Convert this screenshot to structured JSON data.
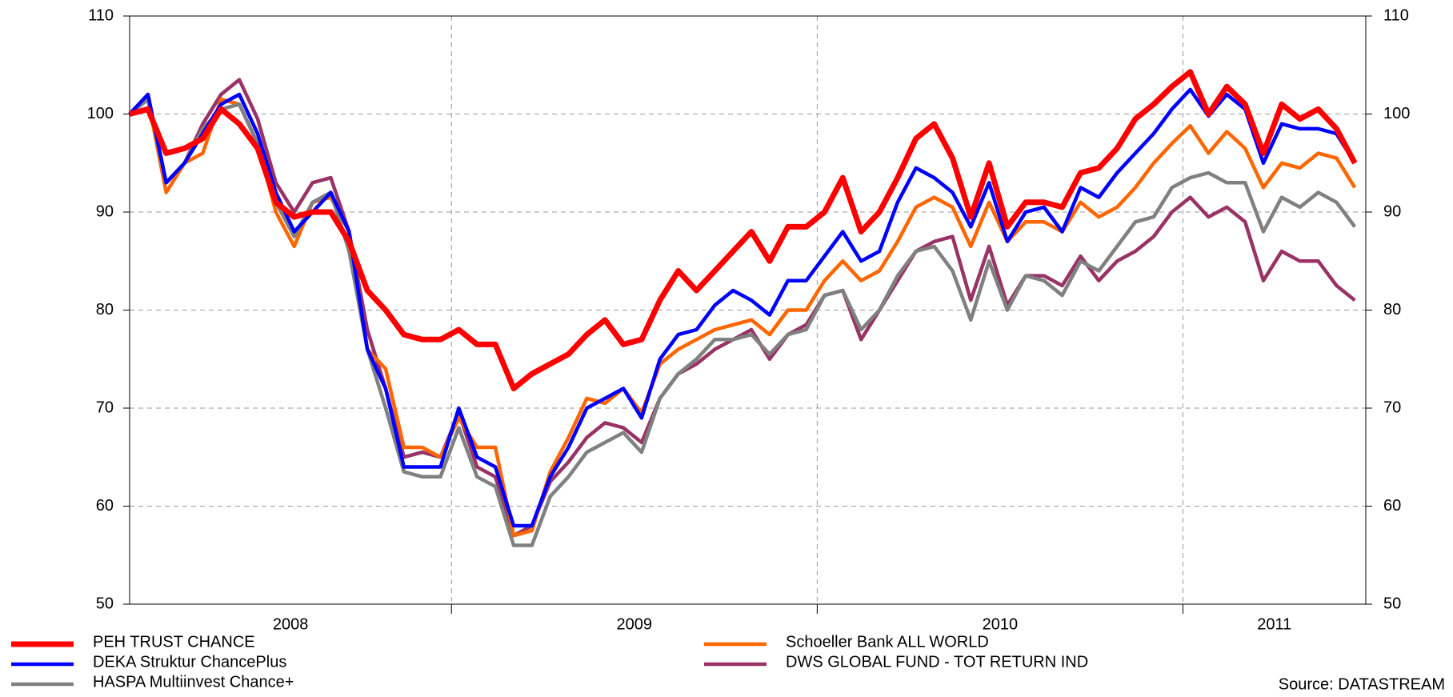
{
  "chart_data": {
    "type": "line",
    "source": "Source: DATASTREAM",
    "x": [
      2008.12,
      2008.17,
      2008.22,
      2008.27,
      2008.32,
      2008.37,
      2008.42,
      2008.47,
      2008.52,
      2008.57,
      2008.62,
      2008.67,
      2008.72,
      2008.77,
      2008.82,
      2008.87,
      2008.92,
      2008.97,
      2009.02,
      2009.07,
      2009.12,
      2009.17,
      2009.22,
      2009.27,
      2009.32,
      2009.37,
      2009.42,
      2009.47,
      2009.52,
      2009.57,
      2009.62,
      2009.67,
      2009.72,
      2009.77,
      2009.82,
      2009.87,
      2009.92,
      2009.97,
      2010.02,
      2010.07,
      2010.12,
      2010.17,
      2010.22,
      2010.27,
      2010.32,
      2010.37,
      2010.42,
      2010.47,
      2010.52,
      2010.57,
      2010.62,
      2010.67,
      2010.72,
      2010.77,
      2010.82,
      2010.87,
      2010.92,
      2010.97,
      2011.02,
      2011.07,
      2011.12,
      2011.17,
      2011.22,
      2011.27,
      2011.32,
      2011.37,
      2011.42,
      2011.47
    ],
    "xlim": [
      2008.12,
      2011.5
    ],
    "xticks": [
      {
        "value": 2008.56,
        "label": "2008"
      },
      {
        "value": 2009.5,
        "label": "2009"
      },
      {
        "value": 2010.5,
        "label": "2010"
      },
      {
        "value": 2011.25,
        "label": "2011"
      }
    ],
    "xgrid": [
      2009,
      2010,
      2011
    ],
    "ylim": [
      50,
      110
    ],
    "yticks": [
      50,
      60,
      70,
      80,
      90,
      100,
      110
    ],
    "grid": true,
    "series": [
      {
        "name": "PEH TRUST CHANCE",
        "color": "#ff0000",
        "values": [
          100,
          100.5,
          96,
          96.5,
          97.5,
          100.5,
          99,
          96.5,
          91,
          89.5,
          90,
          90,
          87,
          82,
          80,
          77.5,
          77,
          77,
          78,
          76.5,
          76.5,
          72,
          73.5,
          74.5,
          75.5,
          77.5,
          79,
          76.5,
          77,
          81,
          84,
          82,
          84,
          86,
          88,
          85,
          88.5,
          88.5,
          90,
          93.5,
          88,
          90,
          93.5,
          97.5,
          99,
          95.5,
          89.5,
          95,
          88.5,
          91,
          91,
          90.5,
          94,
          94.5,
          96.5,
          99.5,
          101,
          102.8,
          104.3,
          100,
          102.8,
          101,
          96,
          101,
          99.5,
          100.5,
          98.5,
          95
        ]
      },
      {
        "name": "DEKA Struktur ChancePlus",
        "color": "#0000ff",
        "values": [
          100,
          102,
          93,
          95,
          98,
          101,
          102,
          98,
          92,
          88,
          90,
          92,
          88,
          76,
          72,
          64,
          64,
          64,
          70,
          65,
          64,
          58,
          58,
          63,
          66,
          70,
          71,
          72,
          69,
          75,
          77.5,
          78,
          80.5,
          82,
          81,
          79.5,
          83,
          83,
          85.5,
          88,
          85,
          86,
          91,
          94.5,
          93.5,
          92,
          88.5,
          93,
          87,
          90,
          90.5,
          88,
          92.5,
          91.5,
          94,
          96,
          98,
          100.5,
          102.5,
          99.8,
          102,
          100.5,
          95,
          99,
          98.5,
          98.5,
          98,
          95
        ]
      },
      {
        "name": "HASPA Multiinvest Chance+",
        "color": "#808080",
        "values": [
          100,
          101.5,
          93,
          95,
          98.5,
          100.5,
          101,
          97,
          91,
          87.5,
          91,
          92,
          86,
          76,
          70,
          63.5,
          63,
          63,
          68,
          63,
          62,
          56,
          56,
          61,
          63,
          65.5,
          66.5,
          67.5,
          65.5,
          71,
          73.5,
          75,
          77,
          77,
          77.5,
          75.5,
          77.5,
          78,
          81.5,
          82,
          78,
          80,
          83.5,
          86,
          86.5,
          84,
          79,
          85,
          80,
          83.5,
          83,
          81.5,
          85,
          84,
          86.5,
          89,
          89.5,
          92.5,
          93.5,
          94,
          93,
          93,
          88,
          91.5,
          90.5,
          92,
          91,
          88.5
        ]
      },
      {
        "name": "Schoeller Bank ALL WORLD",
        "color": "#ff6600",
        "values": [
          100,
          101.5,
          92,
          95,
          96,
          101.5,
          101,
          97,
          90,
          86.5,
          91,
          91.5,
          88,
          76,
          74,
          66,
          66,
          65,
          69,
          66,
          66,
          57,
          57.5,
          63.5,
          67,
          71,
          70.5,
          72,
          69.5,
          74.5,
          76,
          77,
          78,
          78.5,
          79,
          77.5,
          80,
          80,
          83,
          85,
          83,
          84,
          87,
          90.5,
          91.5,
          90.5,
          86.5,
          91,
          87,
          89,
          89,
          88,
          91,
          89.5,
          90.5,
          92.5,
          95,
          97,
          98.8,
          96,
          98.2,
          96.5,
          92.5,
          95,
          94.5,
          96,
          95.5,
          92.5
        ]
      },
      {
        "name": "DWS GLOBAL FUND - TOT RETURN IND",
        "color": "#993366",
        "values": [
          100,
          102,
          93,
          95,
          99,
          102,
          103.5,
          99.5,
          93,
          90,
          93,
          93.5,
          88,
          78,
          72,
          65,
          65.5,
          65,
          69.5,
          64,
          63,
          57,
          58,
          62.5,
          64.5,
          67,
          68.5,
          68,
          66.5,
          71,
          73.5,
          74.5,
          76,
          77,
          78,
          75,
          77.5,
          78.5,
          81.5,
          82,
          77,
          80,
          83,
          86,
          87,
          87.5,
          81,
          86.5,
          80.5,
          83.5,
          83.5,
          82.5,
          85.5,
          83,
          85,
          86,
          87.5,
          90,
          91.5,
          89.5,
          90.5,
          89,
          83,
          86,
          85,
          85,
          82.5,
          81
        ]
      }
    ]
  }
}
